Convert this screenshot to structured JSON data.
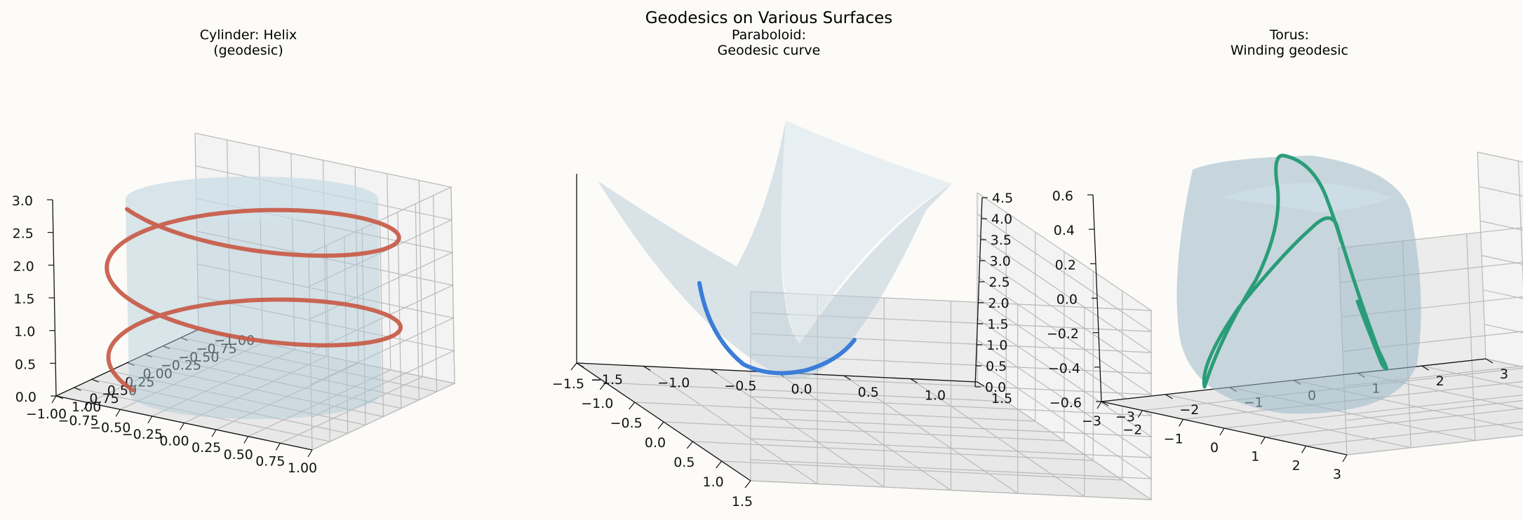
{
  "figure": {
    "title": "Geodesics on Various Surfaces"
  },
  "chart_data": [
    {
      "type": "line",
      "projection": "3d",
      "title": "Cylinder: Helix\n(geodesic)",
      "surface": "cylinder",
      "surface_color": "#aec9d6",
      "curve_color": "#c85a47",
      "xticks": [
        "−1.00",
        "−0.75",
        "−0.50",
        "−0.25",
        "0.00",
        "0.25",
        "0.50",
        "0.75",
        "1.00"
      ],
      "yticks": [
        "1.00",
        "0.75",
        "0.50",
        "0.25",
        "0.00",
        "−0.25",
        "−0.50",
        "−0.75",
        "−1.00"
      ],
      "zticks": [
        "0.0",
        "0.5",
        "1.0",
        "1.5",
        "2.0",
        "2.5",
        "3.0"
      ],
      "xlim": [
        -1.0,
        1.0
      ],
      "ylim": [
        -1.0,
        1.0
      ],
      "zlim": [
        0.0,
        3.0
      ],
      "curve": {
        "name": "helix",
        "x": "cos(t)",
        "y": "sin(t)",
        "z": "0.24*t",
        "t_range": [
          0,
          12.6
        ]
      }
    },
    {
      "type": "line",
      "projection": "3d",
      "title": "Paraboloid:\nGeodesic curve",
      "surface": "z = x^2 + y^2",
      "surface_color": "#b9cdd8",
      "curve_color": "#3b7dd8",
      "xticks": [
        "−1.5",
        "−1.0",
        "−0.5",
        "0.0",
        "0.5",
        "1.0",
        "1.5"
      ],
      "yticks": [
        "−1.5",
        "−1.0",
        "−0.5",
        "0.0",
        "0.5",
        "1.0",
        "1.5"
      ],
      "zticks": [
        "0.0",
        "0.5",
        "1.0",
        "1.5",
        "2.0",
        "2.5",
        "3.0",
        "3.5",
        "4.0",
        "4.5"
      ],
      "xlim": [
        -1.5,
        1.5
      ],
      "ylim": [
        -1.5,
        1.5
      ],
      "zlim": [
        0.0,
        4.5
      ],
      "curve": {
        "name": "geodesic",
        "points": [
          [
            -1.0,
            0.0,
            1.0
          ],
          [
            -0.75,
            0.15,
            0.59
          ],
          [
            -0.5,
            0.3,
            0.34
          ],
          [
            -0.25,
            0.45,
            0.27
          ],
          [
            0.0,
            0.55,
            0.3
          ],
          [
            0.25,
            0.62,
            0.45
          ],
          [
            0.5,
            0.68,
            0.71
          ],
          [
            0.75,
            0.72,
            1.08
          ]
        ]
      }
    },
    {
      "type": "line",
      "projection": "3d",
      "title": "Torus:\nWinding geodesic",
      "surface": "torus",
      "surface_color": "#9bb8c6",
      "curve_color": "#2a9d78",
      "xticks": [
        "−3",
        "−2",
        "−1",
        "0",
        "1",
        "2",
        "3"
      ],
      "yticks": [
        "−3",
        "−2",
        "−1",
        "0",
        "1",
        "2",
        "3"
      ],
      "zticks": [
        "−0.6",
        "−0.4",
        "−0.2",
        "0.0",
        "0.2",
        "0.4",
        "0.6"
      ],
      "xlim": [
        -3,
        3
      ],
      "ylim": [
        -3,
        3
      ],
      "zlim": [
        -0.7,
        0.7
      ],
      "curve": {
        "name": "winding geodesic",
        "R": 2.3,
        "r": 0.7,
        "winding": [
          2,
          3
        ]
      }
    }
  ]
}
